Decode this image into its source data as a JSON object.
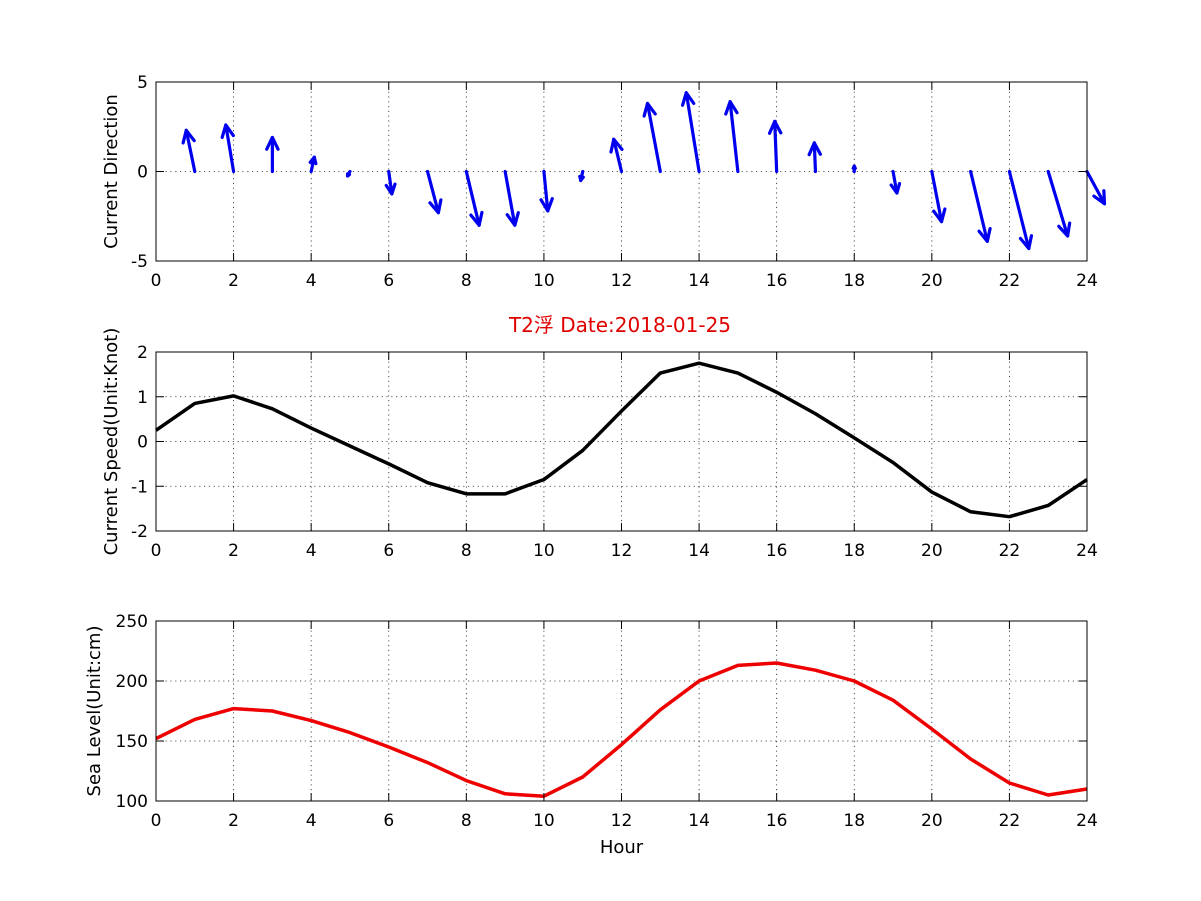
{
  "figure_title": "T2浮    Date:2018-01-25",
  "chart_data": [
    {
      "type": "quiver",
      "ylabel": "Current Direction",
      "xlim": [
        0,
        24
      ],
      "ylim": [
        -5,
        5
      ],
      "xticks": [
        0,
        2,
        4,
        6,
        8,
        10,
        12,
        14,
        16,
        18,
        20,
        22,
        24
      ],
      "yticks": [
        -5,
        0,
        5
      ],
      "color": "#0000ee",
      "x": [
        0,
        1,
        2,
        3,
        4,
        5,
        6,
        7,
        8,
        9,
        10,
        11,
        12,
        13,
        14,
        15,
        16,
        17,
        18,
        19,
        20,
        21,
        22,
        23,
        24
      ],
      "u": [
        0.0,
        -0.22,
        -0.2,
        0.0,
        0.08,
        -0.06,
        0.08,
        0.28,
        0.33,
        0.25,
        0.1,
        -0.05,
        -0.2,
        -0.33,
        -0.33,
        -0.2,
        -0.05,
        -0.03,
        0.0,
        0.1,
        0.25,
        0.43,
        0.5,
        0.5,
        0.45
      ],
      "v": [
        0.0,
        2.3,
        2.6,
        1.9,
        0.8,
        -0.25,
        -1.25,
        -2.3,
        -3.0,
        -3.0,
        -2.2,
        -0.5,
        1.8,
        3.8,
        4.4,
        3.9,
        2.8,
        1.6,
        0.3,
        -1.2,
        -2.8,
        -3.9,
        -4.3,
        -3.6,
        -1.8
      ]
    },
    {
      "type": "line",
      "ylabel": "Current Speed(Unit:Knot)",
      "xlim": [
        0,
        24
      ],
      "ylim": [
        -2,
        2
      ],
      "xticks": [
        0,
        2,
        4,
        6,
        8,
        10,
        12,
        14,
        16,
        18,
        20,
        22,
        24
      ],
      "yticks": [
        -2,
        -1,
        0,
        1,
        2
      ],
      "color": "#000000",
      "x": [
        0,
        1,
        2,
        3,
        4,
        5,
        6,
        7,
        8,
        9,
        10,
        11,
        12,
        13,
        14,
        15,
        16,
        17,
        18,
        19,
        20,
        21,
        22,
        23,
        24
      ],
      "y": [
        0.25,
        0.85,
        1.02,
        0.73,
        0.3,
        -0.1,
        -0.5,
        -0.92,
        -1.17,
        -1.17,
        -0.85,
        -0.2,
        0.68,
        1.53,
        1.75,
        1.53,
        1.1,
        0.62,
        0.08,
        -0.47,
        -1.13,
        -1.57,
        -1.68,
        -1.43,
        -0.85
      ]
    },
    {
      "type": "line",
      "ylabel": "Sea Level(Unit:cm)",
      "xlabel": "Hour",
      "xlim": [
        0,
        24
      ],
      "ylim": [
        100,
        250
      ],
      "xticks": [
        0,
        2,
        4,
        6,
        8,
        10,
        12,
        14,
        16,
        18,
        20,
        22,
        24
      ],
      "yticks": [
        100,
        150,
        200,
        250
      ],
      "color": "#ee0000",
      "x": [
        0,
        1,
        2,
        3,
        4,
        5,
        6,
        7,
        8,
        9,
        10,
        11,
        12,
        13,
        14,
        15,
        16,
        17,
        18,
        19,
        20,
        21,
        22,
        23,
        24
      ],
      "y": [
        152,
        168,
        177,
        175,
        167,
        157,
        145,
        132,
        117,
        106,
        104,
        120,
        147,
        176,
        200,
        213,
        215,
        209,
        200,
        184,
        160,
        135,
        115,
        105,
        110
      ]
    }
  ]
}
